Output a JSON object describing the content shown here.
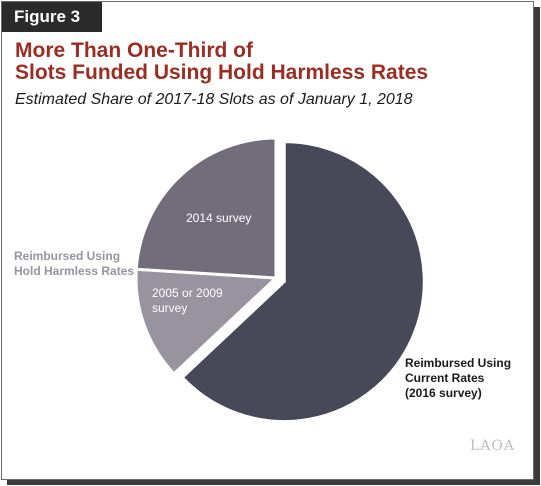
{
  "figure_label": "Figure 3",
  "logo": "LAOA",
  "chart_data": {
    "type": "pie",
    "title": "More Than One-Third of Slots Funded Using Hold Harmless Rates",
    "title_lines": [
      "More Than One-Third of",
      "Slots Funded Using Hold Harmless Rates"
    ],
    "subtitle": "Estimated Share of 2017-18 Slots as of January 1, 2018",
    "group_label_lines": [
      "Reimbursed Using",
      "Hold Harmless Rates"
    ],
    "slices": [
      {
        "key": "current",
        "label_lines": [
          "Reimbursed Using",
          "Current Rates",
          "(2016 survey)"
        ],
        "value": 63,
        "color": "#474858",
        "exploded": true,
        "label_color": "#1a1a1a",
        "label_bold": true
      },
      {
        "key": "2005-2009",
        "label_lines": [
          "2005 or 2009",
          "survey"
        ],
        "value": 13,
        "color": "#98939f",
        "exploded": false,
        "label_color": "#ffffff",
        "label_bold": false
      },
      {
        "key": "2014",
        "label_lines": [
          "2014 survey"
        ],
        "value": 24,
        "color": "#716d7b",
        "exploded": false,
        "label_color": "#ffffff",
        "label_bold": false
      }
    ]
  }
}
